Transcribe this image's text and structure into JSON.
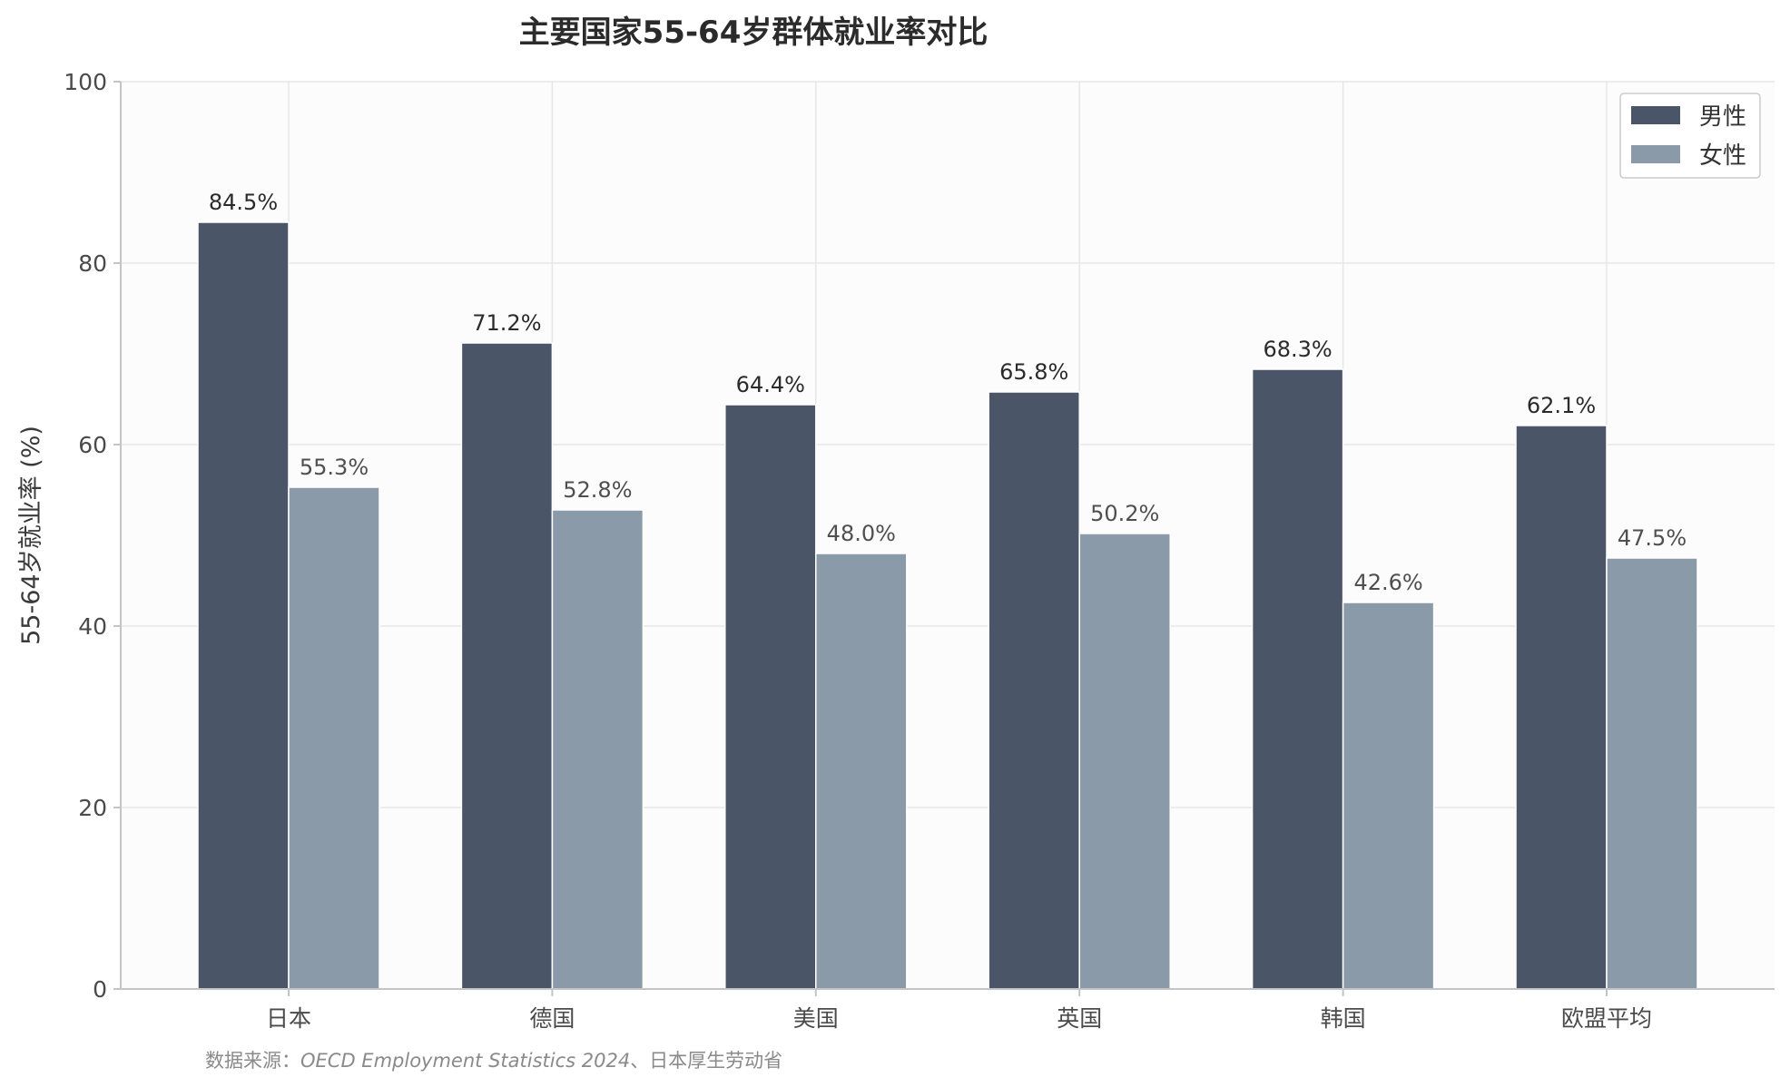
{
  "chart_data": {
    "type": "bar",
    "title": "主要国家55-64岁群体就业率对比",
    "xlabel": "",
    "ylabel": "55-64岁就业率 (%)",
    "categories": [
      "日本",
      "德国",
      "美国",
      "英国",
      "韩国",
      "欧盟平均"
    ],
    "series": [
      {
        "name": "男性",
        "values": [
          84.5,
          71.2,
          64.4,
          65.8,
          68.3,
          62.1
        ],
        "color": "#4a5568",
        "labels": [
          "84.5%",
          "71.2%",
          "64.4%",
          "65.8%",
          "68.3%",
          "62.1%"
        ]
      },
      {
        "name": "女性",
        "values": [
          55.3,
          52.8,
          48.0,
          50.2,
          42.6,
          47.5
        ],
        "color": "#8a9aa9",
        "labels": [
          "55.3%",
          "52.8%",
          "48.0%",
          "50.2%",
          "42.6%",
          "47.5%"
        ]
      }
    ],
    "ylim": [
      0,
      100
    ],
    "yticks": [
      0,
      20,
      40,
      60,
      80,
      100
    ],
    "ytick_labels": [
      "0",
      "20",
      "40",
      "60",
      "80",
      "100"
    ],
    "grid": true,
    "legend_position": "top-right"
  },
  "source_note": {
    "prefix": "数据来源：",
    "italic": "OECD Employment Statistics 2024",
    "suffix": "、日本厚生劳动省"
  },
  "colors": {
    "plot_background": "#fcfcfc",
    "grid": "#e6e6e6",
    "axis": "#c4c4c4"
  }
}
